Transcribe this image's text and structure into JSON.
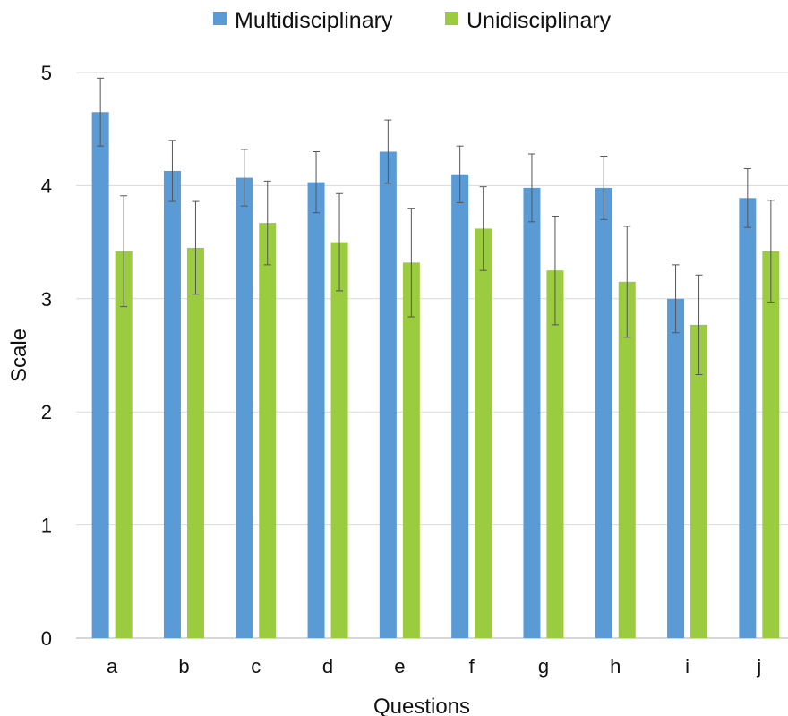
{
  "chart_data": {
    "type": "bar",
    "title": "",
    "xlabel": "Questions",
    "ylabel": "Scale",
    "ylim": [
      0,
      5
    ],
    "yticks": [
      0,
      1,
      2,
      3,
      4,
      5
    ],
    "grid": true,
    "legend_position": "top-center",
    "categories": [
      "a",
      "b",
      "c",
      "d",
      "e",
      "f",
      "g",
      "h",
      "i",
      "j"
    ],
    "series": [
      {
        "name": "Multidisciplinary",
        "color": "#5B9BD5",
        "values": [
          4.65,
          4.13,
          4.07,
          4.03,
          4.3,
          4.1,
          3.98,
          3.98,
          3.0,
          3.89
        ],
        "error": [
          0.3,
          0.27,
          0.25,
          0.27,
          0.28,
          0.25,
          0.3,
          0.28,
          0.3,
          0.26
        ]
      },
      {
        "name": "Unidisciplinary",
        "color": "#9BCB3E",
        "values": [
          3.42,
          3.45,
          3.67,
          3.5,
          3.32,
          3.62,
          3.25,
          3.15,
          2.77,
          3.42
        ],
        "error": [
          0.49,
          0.41,
          0.37,
          0.43,
          0.48,
          0.37,
          0.48,
          0.49,
          0.44,
          0.45
        ]
      }
    ]
  }
}
